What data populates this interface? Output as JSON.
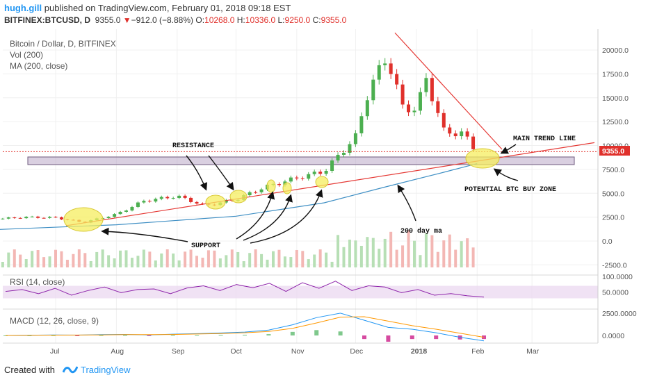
{
  "header": {
    "user": "hugh.gill",
    "published": " published on TradingView.com, February 01, 2018 09:18 EST",
    "symbol": "BITFINEX:BTCUSD, D",
    "price": "9355.0",
    "change": "−912.0 (−8.88%)",
    "o_label": "O:",
    "o_value": "10268.0",
    "h_label": "H:",
    "h_value": "10336.0",
    "l_label": "L:",
    "l_value": "9250.0",
    "c_label": "C:",
    "c_value": "9355.0"
  },
  "legend": {
    "line1": "Bitcoin / Dollar, D, BITFINEX",
    "line2": "Vol (200)",
    "line3": "MA (200, close)"
  },
  "price_tag": "9355.0",
  "annotations": {
    "resistance": "RESISTANCE",
    "support": "SUPPORT",
    "main_trend_line": "MAIN TREND LINE",
    "buy_zone": "POTENTIAL BTC BUY ZONE",
    "ma200": "200 day ma"
  },
  "rsi_label": "RSI (14, close)",
  "macd_label": "MACD (12, 26, close, 9)",
  "footer": {
    "created": "Created with",
    "brand": "TradingView"
  },
  "colors": {
    "up": "#4caf50",
    "down": "#e0302b",
    "ma": "#3f8fc4",
    "trend": "#e53935",
    "rsi": "#8e24aa",
    "rsi_band": "#ead6f0",
    "highlight": "#f5ee5f",
    "zone": "#b9a8c6",
    "vol_up": "#b7dfb5",
    "vol_down": "#f3b7b4"
  },
  "chart_data": [
    {
      "type": "candlestick",
      "title": "Bitcoin / Dollar, D, BITFINEX",
      "x": [
        "2017-06-01",
        "2017-06-15",
        "2017-07-01",
        "2017-07-15",
        "2017-08-01",
        "2017-08-15",
        "2017-09-01",
        "2017-09-15",
        "2017-10-01",
        "2017-10-15",
        "2017-11-01",
        "2017-11-15",
        "2017-12-01",
        "2017-12-08",
        "2017-12-17",
        "2017-12-25",
        "2018-01-01",
        "2018-01-06",
        "2018-01-15",
        "2018-01-25",
        "2018-02-01"
      ],
      "close": [
        2300,
        2500,
        2450,
        1950,
        2800,
        4200,
        4700,
        3700,
        4350,
        5600,
        6600,
        7300,
        10900,
        16000,
        19300,
        14000,
        13800,
        17000,
        11500,
        11200,
        9355
      ],
      "xticks": [
        "Jul",
        "Aug",
        "Sep",
        "Oct",
        "Nov",
        "Dec",
        "2018",
        "Feb",
        "Mar"
      ],
      "yticks": [
        "20000.0",
        "17500.0",
        "15000.0",
        "12500.0",
        "10000.0",
        "7500.0",
        "5000.0",
        "2500.0",
        "0.0",
        "-2500.0"
      ],
      "ylim": [
        -2500,
        21000
      ],
      "series": [
        {
          "name": "MA (200, close)",
          "x": [
            "2017-06-01",
            "2017-08-01",
            "2017-10-01",
            "2017-11-15",
            "2017-12-15",
            "2018-01-15",
            "2018-02-01"
          ],
          "values": [
            1200,
            1700,
            2600,
            4000,
            5600,
            7200,
            8100
          ]
        }
      ],
      "ohlc_last": {
        "open": 10268.0,
        "high": 10336.0,
        "low": 9250.0,
        "close": 9355.0
      },
      "support_zone": [
        8000,
        8800
      ]
    },
    {
      "type": "line",
      "title": "RSI (14, close)",
      "yticks": [
        "100.0000",
        "50.0000"
      ],
      "ylim": [
        0,
        100
      ],
      "band": [
        30,
        70
      ],
      "series": [
        {
          "name": "RSI (14, close)",
          "values": [
            52,
            58,
            45,
            62,
            40,
            55,
            66,
            48,
            58,
            60,
            45,
            63,
            70,
            55,
            74,
            64,
            78,
            52,
            80,
            62,
            85,
            55,
            70,
            66,
            48,
            58,
            40,
            45,
            38,
            34
          ]
        }
      ]
    },
    {
      "type": "line",
      "title": "MACD (12, 26, close, 9)",
      "yticks": [
        "2500.0000",
        "0.0000"
      ],
      "ylim": [
        -700,
        2800
      ],
      "series": [
        {
          "name": "MACD",
          "values": [
            0,
            30,
            60,
            40,
            90,
            120,
            60,
            150,
            200,
            280,
            380,
            600,
            1200,
            2000,
            2500,
            1700,
            900,
            700,
            300,
            -200,
            -600
          ]
        },
        {
          "name": "Signal",
          "values": [
            0,
            20,
            40,
            45,
            60,
            90,
            90,
            110,
            160,
            220,
            300,
            450,
            800,
            1400,
            2050,
            2100,
            1600,
            1100,
            700,
            250,
            -200
          ]
        }
      ]
    }
  ]
}
